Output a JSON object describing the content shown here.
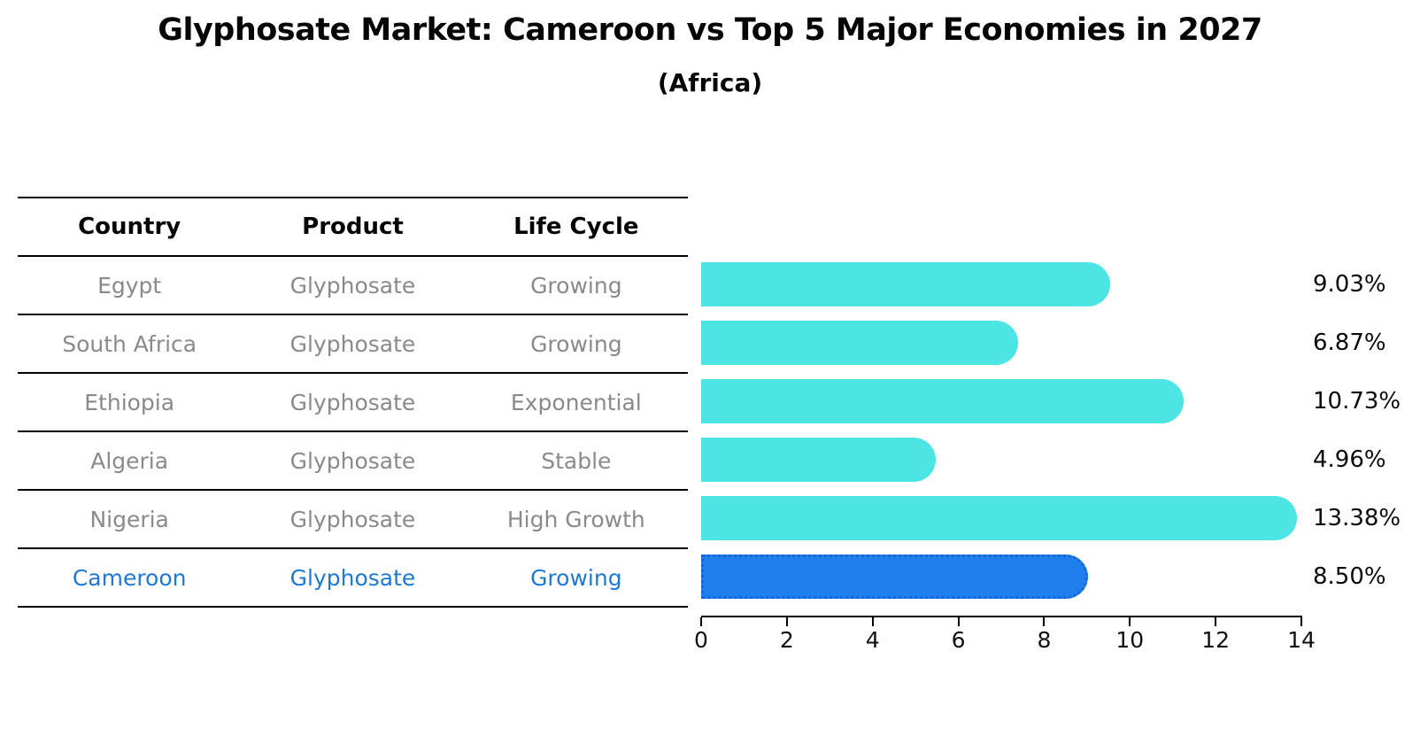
{
  "title": "Glyphosate Market: Cameroon vs Top 5 Major Economies in 2027",
  "subtitle": "(Africa)",
  "table": {
    "headers": [
      "Country",
      "Product",
      "Life Cycle"
    ],
    "rows": [
      {
        "country": "Egypt",
        "product": "Glyphosate",
        "life_cycle": "Growing"
      },
      {
        "country": "South Africa",
        "product": "Glyphosate",
        "life_cycle": "Growing"
      },
      {
        "country": "Ethiopia",
        "product": "Glyphosate",
        "life_cycle": "Exponential"
      },
      {
        "country": "Algeria",
        "product": "Glyphosate",
        "life_cycle": "Stable"
      },
      {
        "country": "Nigeria",
        "product": "Glyphosate",
        "life_cycle": "High Growth"
      },
      {
        "country": "Cameroon",
        "product": "Glyphosate",
        "life_cycle": "Growing"
      }
    ],
    "highlight_row": "Cameroon"
  },
  "chart_data": {
    "type": "bar",
    "orientation": "horizontal",
    "title": "Glyphosate Market: Cameroon vs Top 5 Major Economies in 2027",
    "subtitle": "(Africa)",
    "categories": [
      "Egypt",
      "South Africa",
      "Ethiopia",
      "Algeria",
      "Nigeria",
      "Cameroon"
    ],
    "values": [
      9.03,
      6.87,
      10.73,
      4.96,
      13.38,
      8.5
    ],
    "value_labels": [
      "9.03%",
      "6.87%",
      "10.73%",
      "4.96%",
      "13.38%",
      "8.50%"
    ],
    "xlabel": "",
    "ylabel": "",
    "xlim": [
      0,
      14
    ],
    "xticks": [
      0,
      2,
      4,
      6,
      8,
      10,
      12,
      14
    ],
    "grid": false,
    "legend": false,
    "bar_color": "#4CE5E4",
    "highlight_bar_color": "#1F7FEC",
    "highlight_border_color": "#1565D8",
    "highlight_index": 5
  },
  "colors": {
    "bar": "#4CE5E4",
    "highlight_bar": "#1F7FEC",
    "highlight_border": "#1565D8",
    "highlight_text": "#1E78D7",
    "row_text": "#8A8A8A",
    "header_text": "#050505",
    "axis": "#000000",
    "background": "#FFFFFF"
  }
}
